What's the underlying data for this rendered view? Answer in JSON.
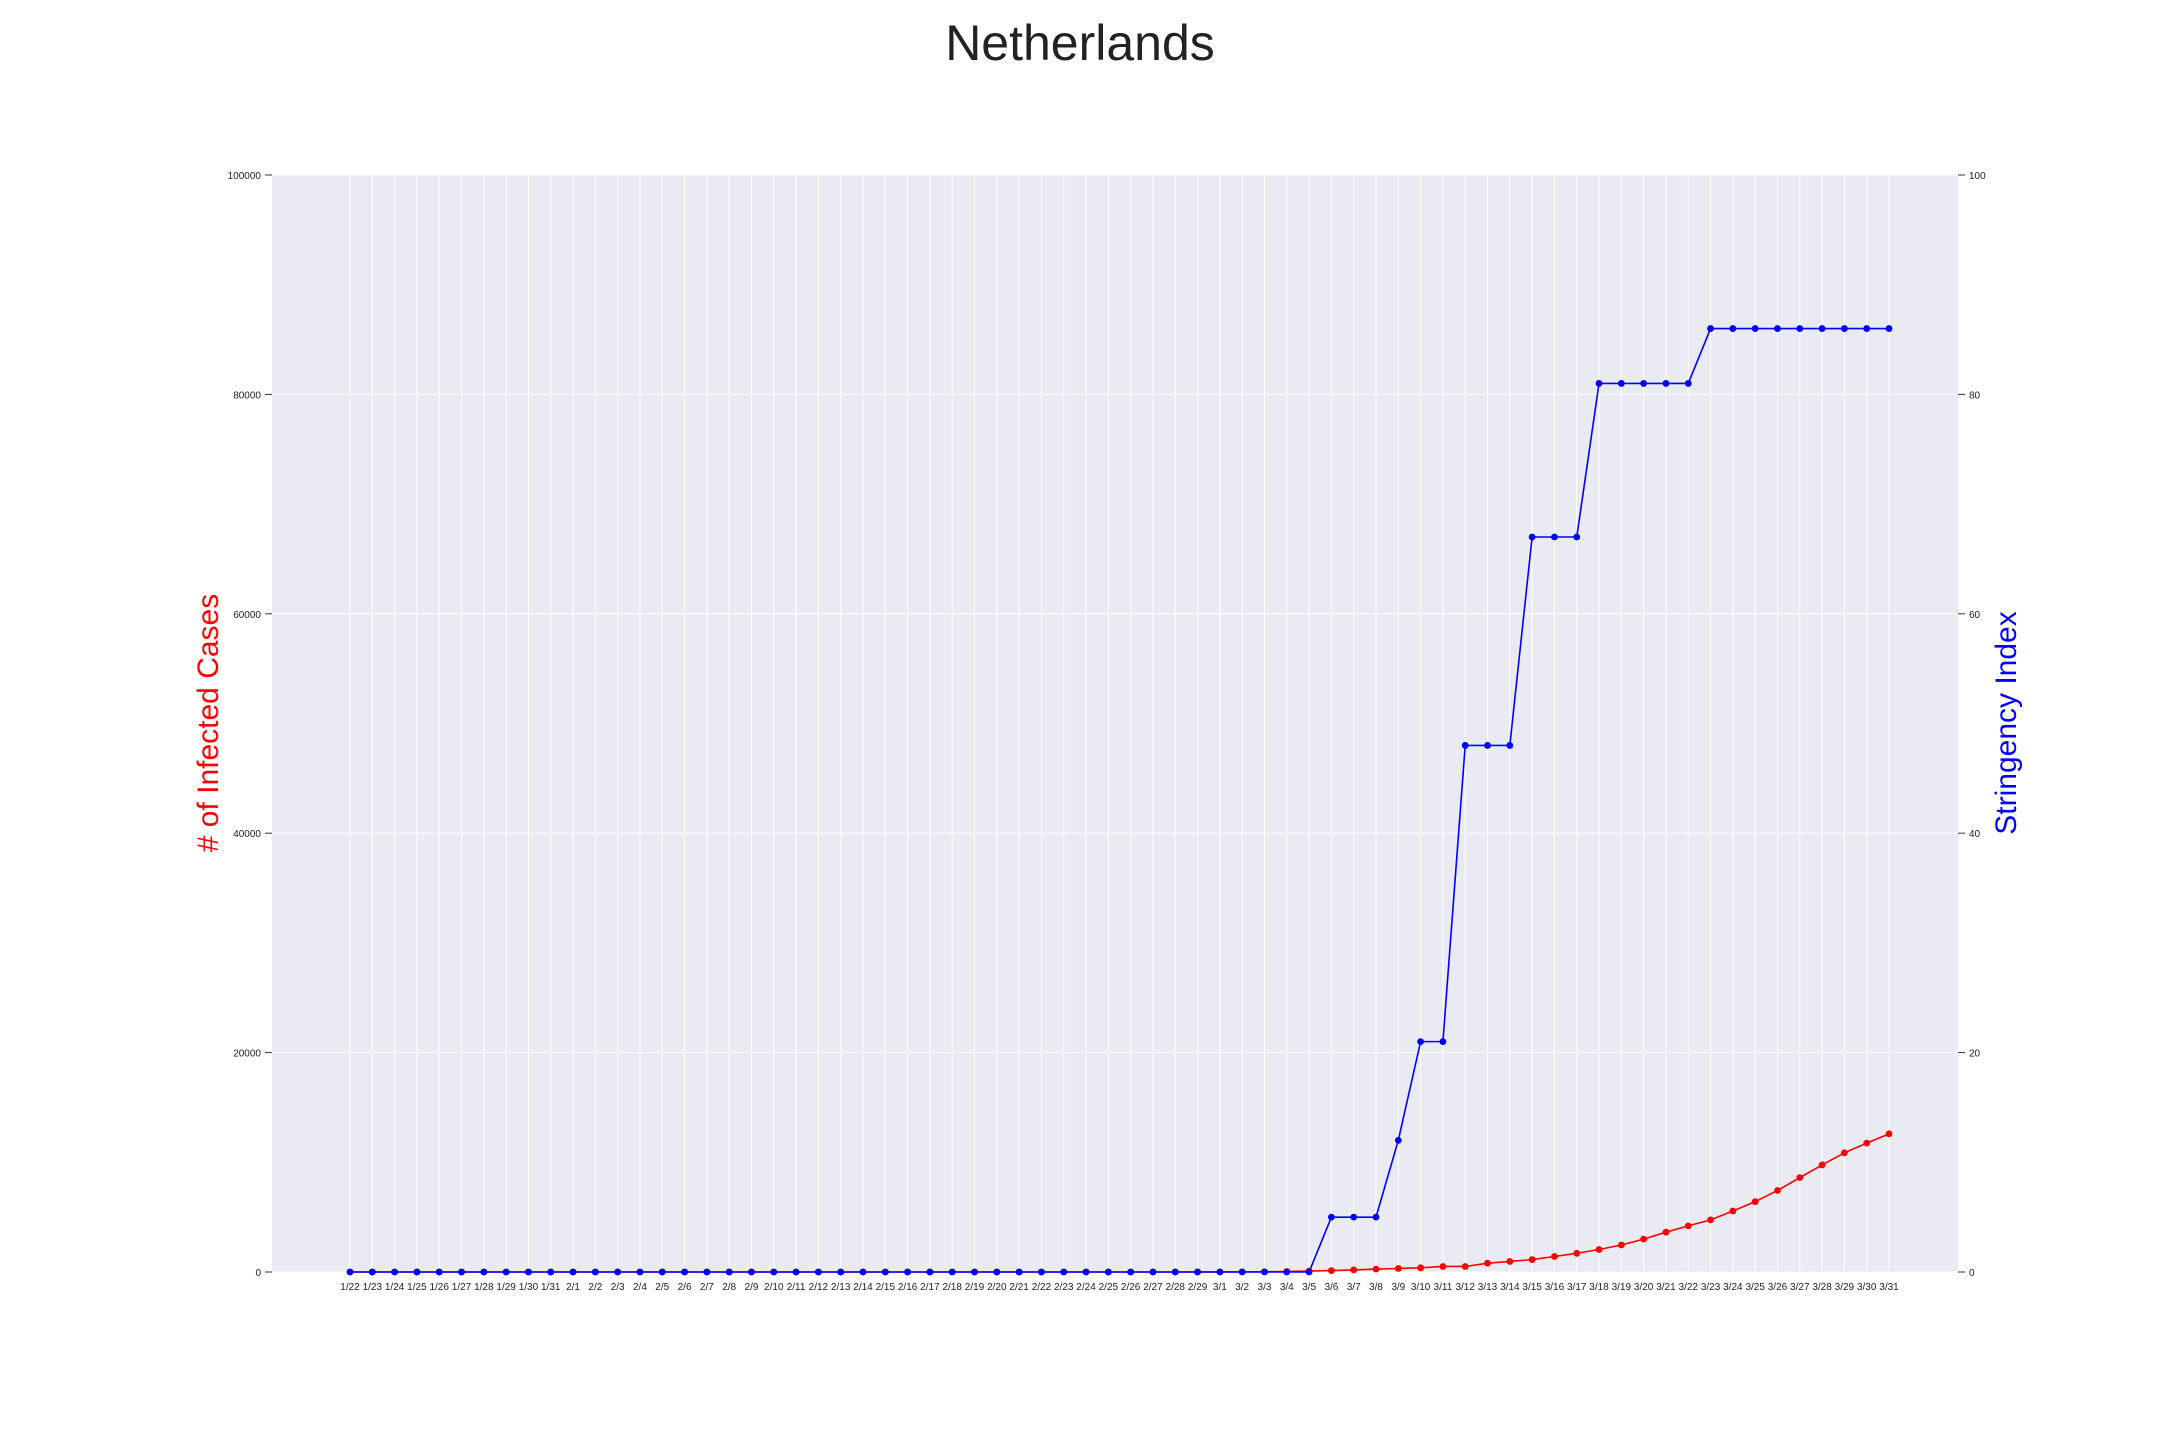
{
  "chart_data": {
    "type": "line",
    "title": "Netherlands",
    "ylabel": "# of Infected Cases",
    "y2label": "Stringency Index",
    "ylim": [
      0,
      100000
    ],
    "y2lim": [
      0,
      100
    ],
    "yticks": [
      "0",
      "20000",
      "40000",
      "60000",
      "80000",
      "100000"
    ],
    "y2ticks": [
      "0",
      "20",
      "40",
      "60",
      "80",
      "100"
    ],
    "grid": true,
    "colors": {
      "cases": "#ff0000",
      "stringency": "#0000ff",
      "plot_bg": "#eaeaf2",
      "grid": "#ffffff"
    },
    "categories": [
      "1/22",
      "1/23",
      "1/24",
      "1/25",
      "1/26",
      "1/27",
      "1/28",
      "1/29",
      "1/30",
      "1/31",
      "2/1",
      "2/2",
      "2/3",
      "2/4",
      "2/5",
      "2/6",
      "2/7",
      "2/8",
      "2/9",
      "2/10",
      "2/11",
      "2/12",
      "2/13",
      "2/14",
      "2/15",
      "2/16",
      "2/17",
      "2/18",
      "2/19",
      "2/20",
      "2/21",
      "2/22",
      "2/23",
      "2/24",
      "2/25",
      "2/26",
      "2/27",
      "2/28",
      "2/29",
      "3/1",
      "3/2",
      "3/3",
      "3/4",
      "3/5",
      "3/6",
      "3/7",
      "3/8",
      "3/9",
      "3/10",
      "3/11",
      "3/12",
      "3/13",
      "3/14",
      "3/15",
      "3/16",
      "3/17",
      "3/18",
      "3/19",
      "3/20",
      "3/21",
      "3/22",
      "3/23",
      "3/24",
      "3/25",
      "3/26",
      "3/27",
      "3/28",
      "3/29",
      "3/30",
      "3/31"
    ],
    "series": [
      {
        "axis": "left",
        "values": [
          0,
          0,
          0,
          0,
          0,
          0,
          0,
          0,
          0,
          0,
          0,
          0,
          0,
          0,
          0,
          0,
          0,
          0,
          0,
          0,
          0,
          0,
          0,
          0,
          0,
          0,
          0,
          0,
          0,
          0,
          0,
          0,
          0,
          0,
          0,
          0,
          1,
          1,
          6,
          10,
          18,
          24,
          38,
          82,
          128,
          188,
          265,
          321,
          382,
          503,
          503,
          804,
          959,
          1135,
          1413,
          1705,
          2051,
          2460,
          2994,
          3631,
          4204,
          4749,
          5560,
          6412,
          7431,
          8603,
          9762,
          10866,
          11750,
          12595
        ]
      },
      {
        "axis": "right",
        "values": [
          0,
          0,
          0,
          0,
          0,
          0,
          0,
          0,
          0,
          0,
          0,
          0,
          0,
          0,
          0,
          0,
          0,
          0,
          0,
          0,
          0,
          0,
          0,
          0,
          0,
          0,
          0,
          0,
          0,
          0,
          0,
          0,
          0,
          0,
          0,
          0,
          0,
          0,
          0,
          0,
          0,
          0,
          0,
          0,
          5,
          5,
          5,
          12,
          21,
          21,
          48,
          48,
          48,
          67,
          67,
          67,
          81,
          81,
          81,
          81,
          81,
          86,
          86,
          86,
          86,
          86,
          86,
          86,
          86,
          86
        ]
      }
    ]
  }
}
